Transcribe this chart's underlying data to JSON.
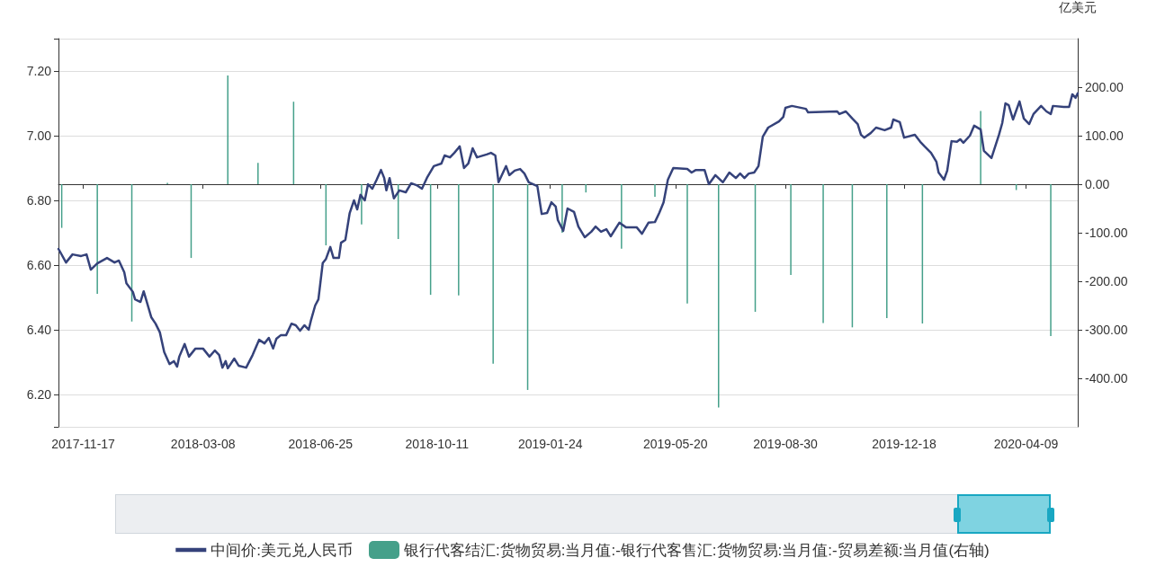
{
  "chart_data": {
    "type": "line",
    "y2label": "亿美元",
    "grid": "y",
    "legend": "bottom",
    "marker": "none",
    "line_style": "solid",
    "xlim": [
      "2017-10-25",
      "2020-05-27"
    ],
    "xticks": [
      "2017-11-17",
      "2018-03-08",
      "2018-06-25",
      "2018-10-11",
      "2019-01-24",
      "2019-05-20",
      "2019-08-30",
      "2019-12-18",
      "2020-04-09"
    ],
    "ylim": [
      6.1,
      7.3
    ],
    "yticks": [
      {
        "value": 6.1,
        "label": null
      },
      {
        "value": 6.2,
        "label": "6.20"
      },
      {
        "value": 6.4,
        "label": "6.40"
      },
      {
        "value": 6.6,
        "label": "6.60"
      },
      {
        "value": 6.8,
        "label": "6.80"
      },
      {
        "value": 7.0,
        "label": "7.00"
      },
      {
        "value": 7.2,
        "label": "7.20"
      },
      {
        "value": 7.3,
        "label": null
      }
    ],
    "y2lim": [
      -500,
      300
    ],
    "y2ticks": [
      {
        "value": -400,
        "label": "-400.00"
      },
      {
        "value": -300,
        "label": "-300.00"
      },
      {
        "value": -200,
        "label": "-200.00"
      },
      {
        "value": -100,
        "label": "-100.00"
      },
      {
        "value": 0,
        "label": "0.00"
      },
      {
        "value": 100,
        "label": "100.00"
      },
      {
        "value": 200,
        "label": "200.00"
      }
    ],
    "series": [
      {
        "name": "中间价:美元兑人民币",
        "color": "#35427a",
        "x": [
          "2017-10-25",
          "2017-11-01",
          "2017-11-07",
          "2017-11-15",
          "2017-11-20",
          "2017-11-24",
          "2017-11-30",
          "2017-12-09",
          "2017-12-16",
          "2017-12-20",
          "2017-12-25",
          "2017-12-27",
          "2018-01-02",
          "2018-01-04",
          "2018-01-09",
          "2018-01-12",
          "2018-01-19",
          "2018-01-23",
          "2018-01-27",
          "2018-01-31",
          "2018-02-05",
          "2018-02-09",
          "2018-02-12",
          "2018-02-14",
          "2018-02-19",
          "2018-02-23",
          "2018-03-01",
          "2018-03-08",
          "2018-03-14",
          "2018-03-19",
          "2018-03-23",
          "2018-03-26",
          "2018-03-29",
          "2018-03-31",
          "2018-04-06",
          "2018-04-10",
          "2018-04-17",
          "2018-04-23",
          "2018-04-29",
          "2018-05-04",
          "2018-05-08",
          "2018-05-12",
          "2018-05-15",
          "2018-05-19",
          "2018-05-24",
          "2018-05-29",
          "2018-06-02",
          "2018-06-06",
          "2018-06-10",
          "2018-06-14",
          "2018-06-16",
          "2018-06-20",
          "2018-06-23",
          "2018-06-27",
          "2018-06-30",
          "2018-07-04",
          "2018-07-07",
          "2018-07-12",
          "2018-07-14",
          "2018-07-18",
          "2018-07-22",
          "2018-07-26",
          "2018-07-29",
          "2018-08-01",
          "2018-08-05",
          "2018-08-08",
          "2018-08-12",
          "2018-08-16",
          "2018-08-20",
          "2018-08-23",
          "2018-08-25",
          "2018-08-28",
          "2018-09-01",
          "2018-09-06",
          "2018-09-12",
          "2018-09-17",
          "2018-09-22",
          "2018-09-27",
          "2018-10-02",
          "2018-10-08",
          "2018-10-15",
          "2018-10-18",
          "2018-10-23",
          "2018-10-27",
          "2018-11-01",
          "2018-11-05",
          "2018-11-09",
          "2018-11-13",
          "2018-11-17",
          "2018-11-26",
          "2018-11-30",
          "2018-12-04",
          "2018-12-07",
          "2018-12-14",
          "2018-12-17",
          "2018-12-22",
          "2018-12-27",
          "2018-12-31",
          "2019-01-04",
          "2019-01-12",
          "2019-01-16",
          "2019-01-21",
          "2019-01-25",
          "2019-01-29",
          "2019-01-31",
          "2019-02-05",
          "2019-02-09",
          "2019-02-15",
          "2019-02-19",
          "2019-02-25",
          "2019-03-03",
          "2019-03-07",
          "2019-03-12",
          "2019-03-17",
          "2019-03-21",
          "2019-03-29",
          "2019-04-04",
          "2019-04-14",
          "2019-04-19",
          "2019-04-25",
          "2019-05-01",
          "2019-05-05",
          "2019-05-09",
          "2019-05-13",
          "2019-05-18",
          "2019-05-31",
          "2019-06-04",
          "2019-06-08",
          "2019-06-16",
          "2019-06-20",
          "2019-06-26",
          "2019-07-03",
          "2019-07-09",
          "2019-07-15",
          "2019-07-19",
          "2019-07-23",
          "2019-07-27",
          "2019-08-01",
          "2019-08-05",
          "2019-08-09",
          "2019-08-14",
          "2019-08-24",
          "2019-08-28",
          "2019-08-30",
          "2019-09-05",
          "2019-09-18",
          "2019-09-20",
          "2019-10-17",
          "2019-10-19",
          "2019-10-25",
          "2019-10-31",
          "2019-11-05",
          "2019-11-08",
          "2019-11-11",
          "2019-11-17",
          "2019-11-22",
          "2019-11-30",
          "2019-12-06",
          "2019-12-08",
          "2019-12-14",
          "2019-12-18",
          "2019-12-28",
          "2020-01-02",
          "2020-01-06",
          "2020-01-12",
          "2020-01-17",
          "2020-01-19",
          "2020-01-24",
          "2020-01-27",
          "2020-01-31",
          "2020-02-05",
          "2020-02-08",
          "2020-02-11",
          "2020-02-17",
          "2020-02-21",
          "2020-02-27",
          "2020-03-01",
          "2020-03-08",
          "2020-03-15",
          "2020-03-18",
          "2020-03-21",
          "2020-03-24",
          "2020-03-28",
          "2020-04-03",
          "2020-04-07",
          "2020-04-12",
          "2020-04-16",
          "2020-04-23",
          "2020-04-28",
          "2020-05-02",
          "2020-05-04",
          "2020-05-14",
          "2020-05-19",
          "2020-05-22",
          "2020-05-25",
          "2020-05-27"
        ],
        "values": [
          6.65,
          6.608,
          6.633,
          6.628,
          6.633,
          6.586,
          6.605,
          6.622,
          6.608,
          6.614,
          6.578,
          6.544,
          6.517,
          6.494,
          6.486,
          6.519,
          6.439,
          6.419,
          6.392,
          6.331,
          6.294,
          6.303,
          6.286,
          6.317,
          6.356,
          6.317,
          6.342,
          6.342,
          6.317,
          6.336,
          6.322,
          6.283,
          6.303,
          6.281,
          6.311,
          6.289,
          6.283,
          6.322,
          6.369,
          6.358,
          6.375,
          6.342,
          6.372,
          6.383,
          6.383,
          6.419,
          6.414,
          6.397,
          6.414,
          6.4,
          6.428,
          6.475,
          6.494,
          6.606,
          6.619,
          6.656,
          6.622,
          6.622,
          6.669,
          6.678,
          6.761,
          6.8,
          6.772,
          6.817,
          6.8,
          6.85,
          6.836,
          6.864,
          6.894,
          6.869,
          6.831,
          6.869,
          6.806,
          6.831,
          6.825,
          6.853,
          6.847,
          6.836,
          6.872,
          6.906,
          6.914,
          6.939,
          6.933,
          6.947,
          6.967,
          6.9,
          6.914,
          6.961,
          6.933,
          6.942,
          6.947,
          6.939,
          6.856,
          6.906,
          6.878,
          6.892,
          6.897,
          6.883,
          6.856,
          6.844,
          6.758,
          6.761,
          6.794,
          6.781,
          6.739,
          6.706,
          6.775,
          6.764,
          6.719,
          6.686,
          6.703,
          6.719,
          6.703,
          6.711,
          6.689,
          6.731,
          6.717,
          6.717,
          6.697,
          6.731,
          6.733,
          6.761,
          6.794,
          6.864,
          6.9,
          6.897,
          6.886,
          6.894,
          6.894,
          6.85,
          6.878,
          6.856,
          6.886,
          6.869,
          6.883,
          6.869,
          6.883,
          6.886,
          6.906,
          6.997,
          7.025,
          7.044,
          7.058,
          7.086,
          7.092,
          7.083,
          7.072,
          7.075,
          7.067,
          7.075,
          7.053,
          7.036,
          7.003,
          6.994,
          7.008,
          7.025,
          7.017,
          7.025,
          7.05,
          7.042,
          6.994,
          7.003,
          6.981,
          6.967,
          6.947,
          6.919,
          6.886,
          6.864,
          6.892,
          6.983,
          6.981,
          6.989,
          6.978,
          7.0,
          7.031,
          7.019,
          6.953,
          6.931,
          7.003,
          7.039,
          7.1,
          7.094,
          7.05,
          7.106,
          7.053,
          7.036,
          7.067,
          7.092,
          7.075,
          7.067,
          7.092,
          7.089,
          7.089,
          7.128,
          7.117,
          7.131
        ]
      },
      {
        "name": "银行代客结汇:货物贸易:当月值:-银行代客售汇:货物贸易:当月值:-贸易差额:当月值(右轴)",
        "type": "bar",
        "axis": "y2",
        "color": "#45a08a",
        "x": [
          "2017-10-28",
          "2017-11-30",
          "2018-01-01",
          "2018-02-03",
          "2018-02-25",
          "2018-03-31",
          "2018-04-28",
          "2018-05-31",
          "2018-06-30",
          "2018-08-02",
          "2018-09-05",
          "2018-10-05",
          "2018-10-31",
          "2018-12-02",
          "2019-01-03",
          "2019-02-04",
          "2019-02-26",
          "2019-03-31",
          "2019-05-01",
          "2019-05-31",
          "2019-06-29",
          "2019-08-02",
          "2019-09-04",
          "2019-10-04",
          "2019-10-31",
          "2019-12-02",
          "2020-01-04",
          "2020-02-27",
          "2020-03-31",
          "2020-05-02"
        ],
        "values": [
          -90,
          -226,
          -283,
          3,
          -152,
          224,
          44,
          170,
          -126,
          -83,
          -113,
          -228,
          -229,
          -370,
          -424,
          -100,
          -17,
          -133,
          -26,
          -246,
          -460,
          -263,
          -187,
          -286,
          -295,
          -276,
          -287,
          151,
          -12,
          -313
        ]
      }
    ]
  }
}
